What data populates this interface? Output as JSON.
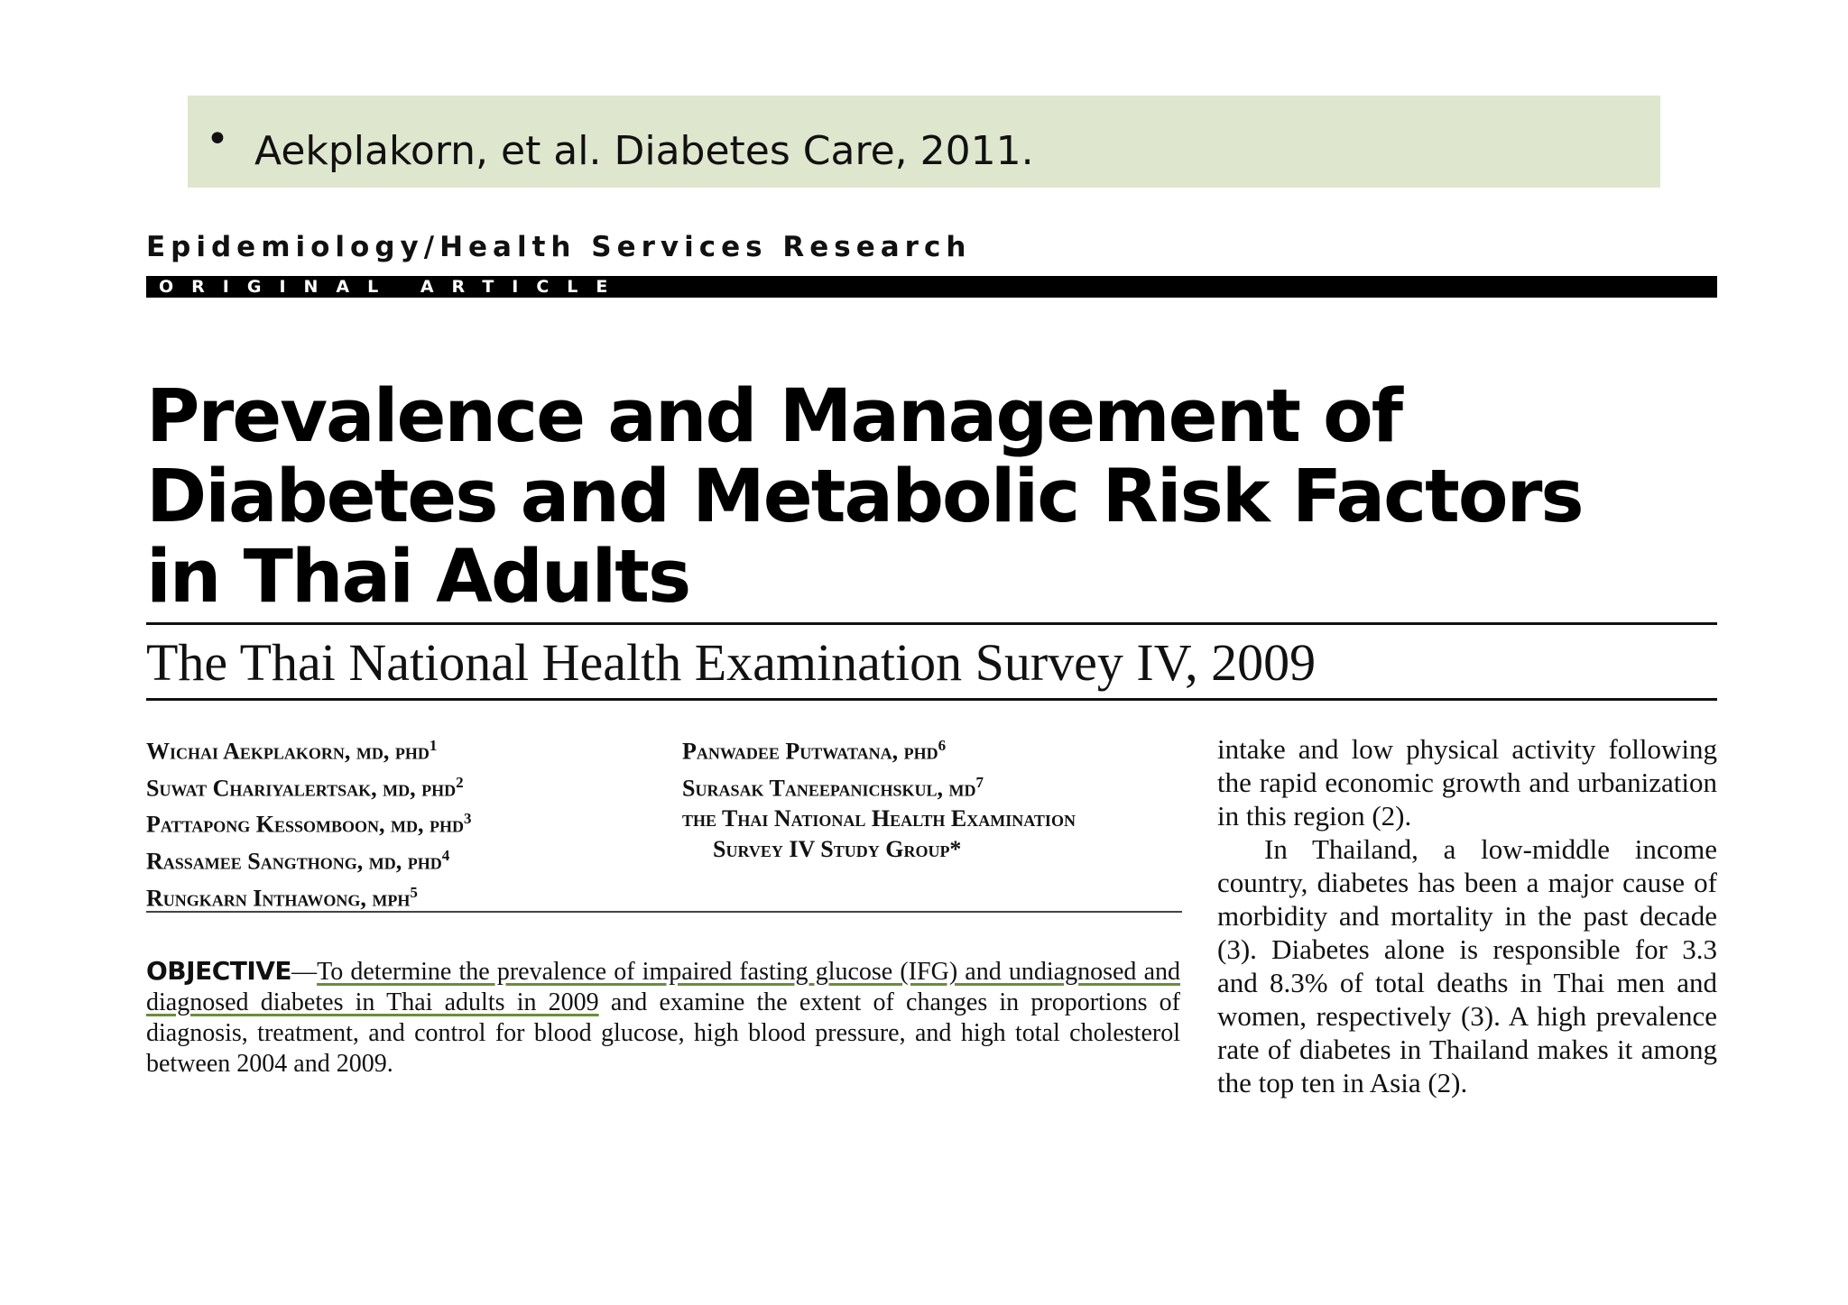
{
  "slide": {
    "bullet": "•",
    "citation": "Aekplakorn, et al. Diabetes Care, 2011."
  },
  "article": {
    "section": "Epidemiology/Health Services Research",
    "type_label": "ORIGINAL ARTICLE",
    "title_lines": [
      "Prevalence and Management of",
      "Diabetes and Metabolic Risk Factors",
      "in Thai Adults"
    ],
    "subtitle": "The Thai National Health Examination Survey IV, 2009",
    "authors_left": [
      {
        "name": "Wichai Aekplakorn, md, phd",
        "sup": "1"
      },
      {
        "name": "Suwat Chariyalertsak, md, phd",
        "sup": "2"
      },
      {
        "name": "Pattapong Kessomboon, md, phd",
        "sup": "3"
      },
      {
        "name": "Rassamee Sangthong, md, phd",
        "sup": "4"
      },
      {
        "name": "Rungkarn Inthawong, mph",
        "sup": "5"
      }
    ],
    "authors_right": [
      {
        "name": "Panwadee Putwatana, phd",
        "sup": "6"
      },
      {
        "name": "Surasak Taneepanichskul, md",
        "sup": "7"
      },
      {
        "name": "the Thai National Health Examination",
        "sup": ""
      },
      {
        "name": "Survey IV Study Group*",
        "sup": ""
      }
    ],
    "objective_label": "OBJECTIVE",
    "objective_dash": "—",
    "objective_highlight": "To determine the prevalence of impaired fasting glucose (IFG) and undiagnosed and diagnosed diabetes in Thai adults in 2009",
    "objective_rest": " and examine the extent of changes in proportions of diagnosis, treatment, and control for blood glucose, high blood pressure, and high total cholesterol between 2004 and 2009.",
    "right_para1": "intake and low physical activity following the rapid economic growth and urbanization in this region (2).",
    "right_para2": "In Thailand, a low-middle income country, diabetes has been a major cause of morbidity and mortality in the past decade (3). Diabetes alone is responsible for 3.3 and 8.3% of total deaths in Thai men and women, respectively (3). A high prevalence rate of diabetes in Thailand makes it among the top ten in Asia (2)."
  }
}
